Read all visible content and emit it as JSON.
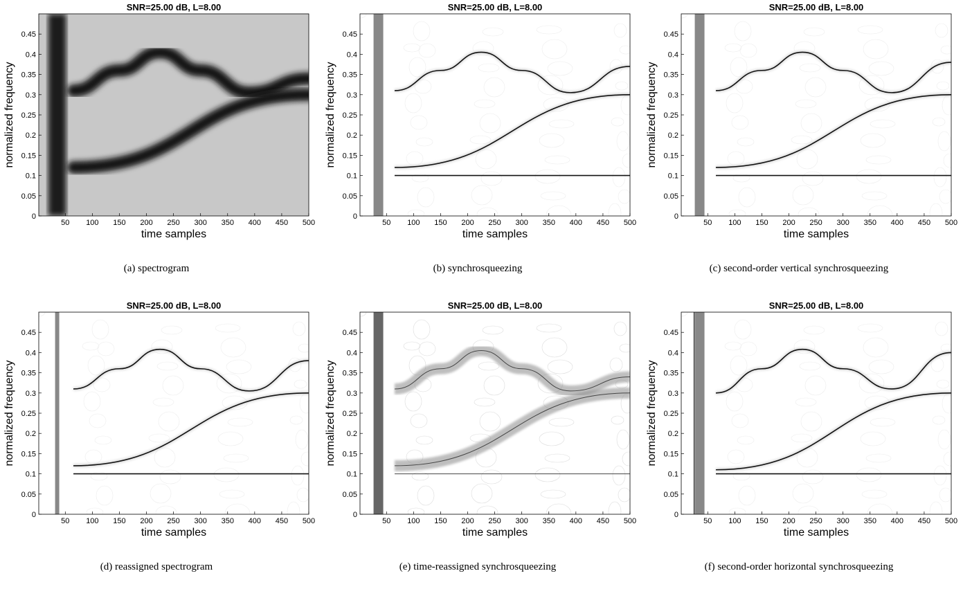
{
  "chart_data": [
    {
      "id": "a",
      "type": "heatmap",
      "style": "spectrogram",
      "title": "SNR=25.00 dB, L=8.00",
      "caption": "(a) spectrogram",
      "xlabel": "time samples",
      "ylabel": "normalized frequency",
      "xlim": [
        1,
        500
      ],
      "ylim": [
        0,
        0.5
      ],
      "xticks": [
        50,
        100,
        150,
        200,
        250,
        300,
        350,
        400,
        450,
        500
      ],
      "yticks": [
        0,
        0.05,
        0.1,
        0.15,
        0.2,
        0.25,
        0.3,
        0.35,
        0.4,
        0.45
      ],
      "colormap": "gray (dark = high energy)",
      "components": [
        {
          "name": "impulse",
          "x": 35,
          "y_range": [
            0,
            0.5
          ]
        },
        {
          "name": "sinusoid",
          "x": [
            65,
            150,
            225,
            300,
            390,
            500
          ],
          "y": [
            0.31,
            0.36,
            0.405,
            0.36,
            0.305,
            0.34
          ]
        },
        {
          "name": "chirp",
          "x": [
            65,
            500
          ],
          "y": [
            0.12,
            0.3
          ]
        },
        {
          "name": "tone",
          "x": [
            65,
            500
          ],
          "y": [
            0.1,
            0.1
          ]
        }
      ]
    },
    {
      "id": "b",
      "type": "heatmap",
      "style": "synchrosqueezing",
      "title": "SNR=25.00 dB, L=8.00",
      "caption": "(b) synchrosqueezing",
      "xlabel": "time samples",
      "ylabel": "normalized frequency",
      "xlim": [
        1,
        500
      ],
      "ylim": [
        0,
        0.5
      ],
      "xticks": [
        50,
        100,
        150,
        200,
        250,
        300,
        350,
        400,
        450,
        500
      ],
      "yticks": [
        0,
        0.05,
        0.1,
        0.15,
        0.2,
        0.25,
        0.3,
        0.35,
        0.4,
        0.45
      ],
      "colormap": "gray (dark = high energy)",
      "components": [
        {
          "name": "impulse",
          "x": 35,
          "y_range": [
            0,
            0.5
          ]
        },
        {
          "name": "sinusoid",
          "x": [
            65,
            150,
            225,
            300,
            390,
            500
          ],
          "y": [
            0.31,
            0.36,
            0.405,
            0.36,
            0.305,
            0.37
          ]
        },
        {
          "name": "chirp",
          "x": [
            65,
            500
          ],
          "y": [
            0.12,
            0.3
          ]
        },
        {
          "name": "tone",
          "x": [
            65,
            500
          ],
          "y": [
            0.1,
            0.1
          ]
        }
      ]
    },
    {
      "id": "c",
      "type": "heatmap",
      "style": "vertical-2nd-order",
      "title": "SNR=25.00 dB, L=8.00",
      "caption": "(c) second-order vertical synchrosqueezing",
      "xlabel": "time samples",
      "ylabel": "normalized frequency",
      "xlim": [
        1,
        500
      ],
      "ylim": [
        0,
        0.5
      ],
      "xticks": [
        50,
        100,
        150,
        200,
        250,
        300,
        350,
        400,
        450,
        500
      ],
      "yticks": [
        0,
        0.05,
        0.1,
        0.15,
        0.2,
        0.25,
        0.3,
        0.35,
        0.4,
        0.45
      ],
      "colormap": "gray (dark = high energy)",
      "components": [
        {
          "name": "impulse",
          "x": 35,
          "y_range": [
            0,
            0.5
          ]
        },
        {
          "name": "sinusoid",
          "x": [
            65,
            150,
            225,
            300,
            390,
            500
          ],
          "y": [
            0.31,
            0.36,
            0.405,
            0.36,
            0.305,
            0.38
          ]
        },
        {
          "name": "chirp",
          "x": [
            65,
            500
          ],
          "y": [
            0.12,
            0.3
          ]
        },
        {
          "name": "tone",
          "x": [
            65,
            500
          ],
          "y": [
            0.1,
            0.1
          ]
        }
      ]
    },
    {
      "id": "d",
      "type": "heatmap",
      "style": "reassigned",
      "title": "SNR=25.00 dB, L=8.00",
      "caption": "(d) reassigned spectrogram",
      "xlabel": "time samples",
      "ylabel": "normalized frequency",
      "xlim": [
        1,
        500
      ],
      "ylim": [
        0,
        0.5
      ],
      "xticks": [
        50,
        100,
        150,
        200,
        250,
        300,
        350,
        400,
        450,
        500
      ],
      "yticks": [
        0,
        0.05,
        0.1,
        0.15,
        0.2,
        0.25,
        0.3,
        0.35,
        0.4,
        0.45
      ],
      "colormap": "gray (dark = high energy)",
      "components": [
        {
          "name": "impulse",
          "x": 35,
          "y_range": [
            0,
            0.5
          ]
        },
        {
          "name": "sinusoid",
          "x": [
            65,
            150,
            225,
            300,
            390,
            500
          ],
          "y": [
            0.31,
            0.36,
            0.408,
            0.36,
            0.305,
            0.38
          ]
        },
        {
          "name": "chirp",
          "x": [
            65,
            500
          ],
          "y": [
            0.12,
            0.3
          ]
        },
        {
          "name": "tone",
          "x": [
            65,
            500
          ],
          "y": [
            0.1,
            0.1
          ]
        }
      ]
    },
    {
      "id": "e",
      "type": "heatmap",
      "style": "time-reassigned",
      "title": "SNR=25.00 dB, L=8.00",
      "caption": "(e) time-reassigned synchrosqueezing",
      "xlabel": "time samples",
      "ylabel": "normalized frequency",
      "xlim": [
        1,
        500
      ],
      "ylim": [
        0,
        0.5
      ],
      "xticks": [
        50,
        100,
        150,
        200,
        250,
        300,
        350,
        400,
        450,
        500
      ],
      "yticks": [
        0,
        0.05,
        0.1,
        0.15,
        0.2,
        0.25,
        0.3,
        0.35,
        0.4,
        0.45
      ],
      "colormap": "gray (dark = high energy)",
      "components": [
        {
          "name": "impulse",
          "x": 35,
          "y_range": [
            0,
            0.5
          ]
        },
        {
          "name": "sinusoid",
          "x": [
            65,
            150,
            225,
            300,
            390,
            500
          ],
          "y": [
            0.31,
            0.36,
            0.405,
            0.36,
            0.305,
            0.34
          ]
        },
        {
          "name": "chirp",
          "x": [
            65,
            500
          ],
          "y": [
            0.12,
            0.3
          ]
        },
        {
          "name": "tone",
          "x": [
            65,
            500
          ],
          "y": [
            0.1,
            0.1
          ]
        }
      ]
    },
    {
      "id": "f",
      "type": "heatmap",
      "style": "horizontal-2nd-order",
      "title": "SNR=25.00 dB, L=8.00",
      "caption": "(f) second-order horizontal synchrosqueezing",
      "xlabel": "time samples",
      "ylabel": "normalized frequency",
      "xlim": [
        1,
        500
      ],
      "ylim": [
        0,
        0.5
      ],
      "xticks": [
        50,
        100,
        150,
        200,
        250,
        300,
        350,
        400,
        450,
        500
      ],
      "yticks": [
        0,
        0.05,
        0.1,
        0.15,
        0.2,
        0.25,
        0.3,
        0.35,
        0.4,
        0.45
      ],
      "colormap": "gray (dark = high energy)",
      "components": [
        {
          "name": "impulse",
          "x": 35,
          "y_range": [
            0,
            0.5
          ]
        },
        {
          "name": "sinusoid",
          "x": [
            65,
            150,
            225,
            300,
            390,
            500
          ],
          "y": [
            0.3,
            0.36,
            0.408,
            0.36,
            0.31,
            0.4
          ]
        },
        {
          "name": "chirp",
          "x": [
            65,
            500
          ],
          "y": [
            0.11,
            0.3
          ]
        },
        {
          "name": "tone",
          "x": [
            65,
            500
          ],
          "y": [
            0.1,
            0.1
          ]
        }
      ]
    }
  ]
}
